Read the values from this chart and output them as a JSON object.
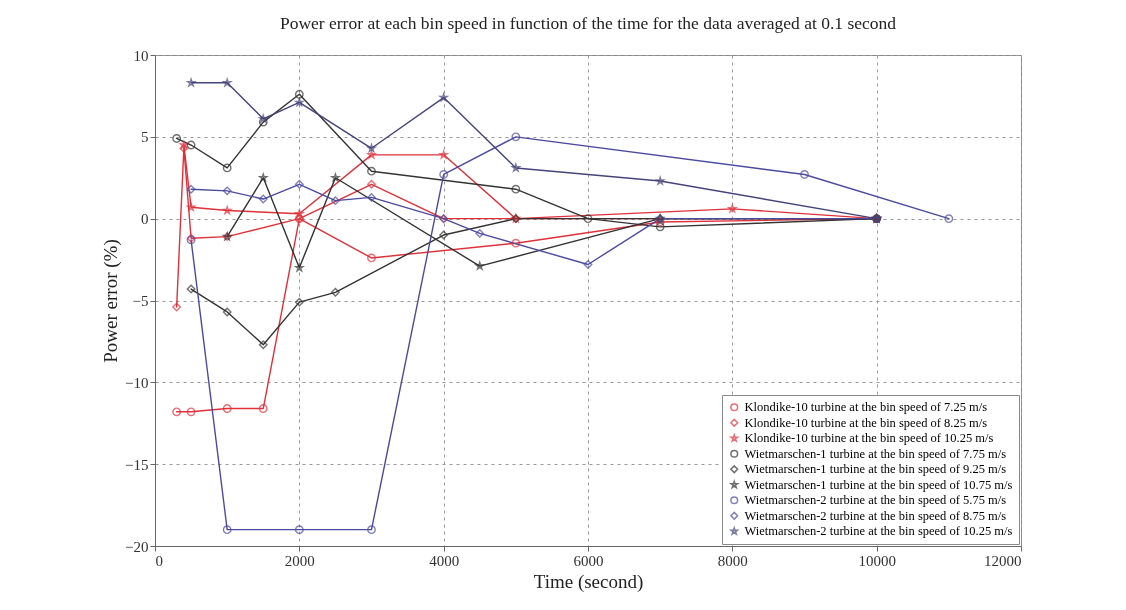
{
  "chart_data": {
    "type": "line",
    "title": "Power error at each bin speed in function of the time for the data averaged at 0.1 second",
    "xlabel": "Time (second)",
    "ylabel": "Power error (%)",
    "xlim": [
      0,
      12000
    ],
    "xticks": [
      0,
      2000,
      4000,
      6000,
      8000,
      10000,
      12000
    ],
    "ylim": [
      -20,
      10
    ],
    "yticks": [
      -20,
      -15,
      -10,
      -5,
      0,
      5,
      10
    ],
    "grid": true,
    "legend": "bottom right",
    "line_style": "solid",
    "series": [
      {
        "name": "Klondike-10 turbine at the bin speed of 7.25 m/s",
        "color": "#e0303a",
        "marker": "circle",
        "x": [
          300,
          500,
          1000,
          1500,
          2000,
          3000,
          5000,
          7000,
          10000
        ],
        "values": [
          -11.8,
          -11.8,
          -11.6,
          -11.6,
          0,
          -2.4,
          -1.5,
          -0.2,
          0
        ]
      },
      {
        "name": "Klondike-10 turbine at the bin speed of 8.25 m/s",
        "color": "#e0303a",
        "marker": "diamond",
        "x": [
          300,
          400,
          500,
          1000,
          2000,
          3000,
          4000,
          5000,
          10000
        ],
        "values": [
          -5.4,
          4.3,
          -1.2,
          -1.1,
          0,
          2.1,
          0,
          0,
          0
        ]
      },
      {
        "name": "Klondike-10 turbine at the bin speed of 10.25 m/s",
        "color": "#e0303a",
        "marker": "star",
        "x": [
          400,
          500,
          1000,
          2000,
          3000,
          4000,
          5000,
          8000,
          10000
        ],
        "values": [
          4.5,
          0.7,
          0.5,
          0.3,
          3.9,
          3.9,
          0,
          0.6,
          0
        ]
      },
      {
        "name": "Wietmarschen-1 turbine at the bin speed of 7.75 m/s",
        "color": "#333333",
        "marker": "circle",
        "x": [
          300,
          500,
          1000,
          1500,
          2000,
          3000,
          5000,
          6000,
          7000,
          10000
        ],
        "values": [
          4.9,
          4.5,
          3.1,
          5.9,
          7.6,
          2.9,
          1.8,
          0,
          -0.5,
          0
        ]
      },
      {
        "name": "Wietmarschen-1 turbine at the bin speed of 9.25 m/s",
        "color": "#333333",
        "marker": "diamond",
        "x": [
          500,
          1000,
          1500,
          2000,
          2500,
          4000,
          5000,
          7000,
          10000
        ],
        "values": [
          -4.3,
          -5.7,
          -7.7,
          -5.1,
          -4.5,
          -1,
          0,
          0,
          0
        ]
      },
      {
        "name": "Wietmarschen-1 turbine at the bin speed of 10.75 m/s",
        "color": "#333333",
        "marker": "star",
        "x": [
          1000,
          1500,
          2000,
          2500,
          4500,
          7000,
          10000
        ],
        "values": [
          -1.1,
          2.5,
          -3,
          2.5,
          -2.9,
          0,
          0
        ]
      },
      {
        "name": "Wietmarschen-2 turbine at the bin speed of 5.75 m/s",
        "color": "#4a4aa0",
        "marker": "circle",
        "x": [
          500,
          1000,
          2000,
          3000,
          4000,
          5000,
          9000,
          11000
        ],
        "values": [
          -1.3,
          -19,
          -19,
          -19,
          2.7,
          5,
          2.7,
          0
        ]
      },
      {
        "name": "Wietmarschen-2 turbine at the bin speed of 8.75 m/s",
        "color": "#4a4aa0",
        "marker": "diamond",
        "x": [
          500,
          1000,
          1500,
          2000,
          2500,
          3000,
          4000,
          4500,
          6000,
          7000,
          10000
        ],
        "values": [
          1.8,
          1.7,
          1.2,
          2.1,
          1.1,
          1.3,
          0,
          -0.9,
          -2.8,
          0,
          0
        ]
      },
      {
        "name": "Wietmarschen-2 turbine at the bin speed of 10.25 m/s",
        "color": "#44447a",
        "marker": "star",
        "x": [
          500,
          1000,
          1500,
          2000,
          3000,
          4000,
          5000,
          7000,
          10000
        ],
        "values": [
          8.3,
          8.3,
          6.1,
          7.1,
          4.3,
          7.4,
          3.1,
          2.3,
          0
        ]
      }
    ]
  }
}
